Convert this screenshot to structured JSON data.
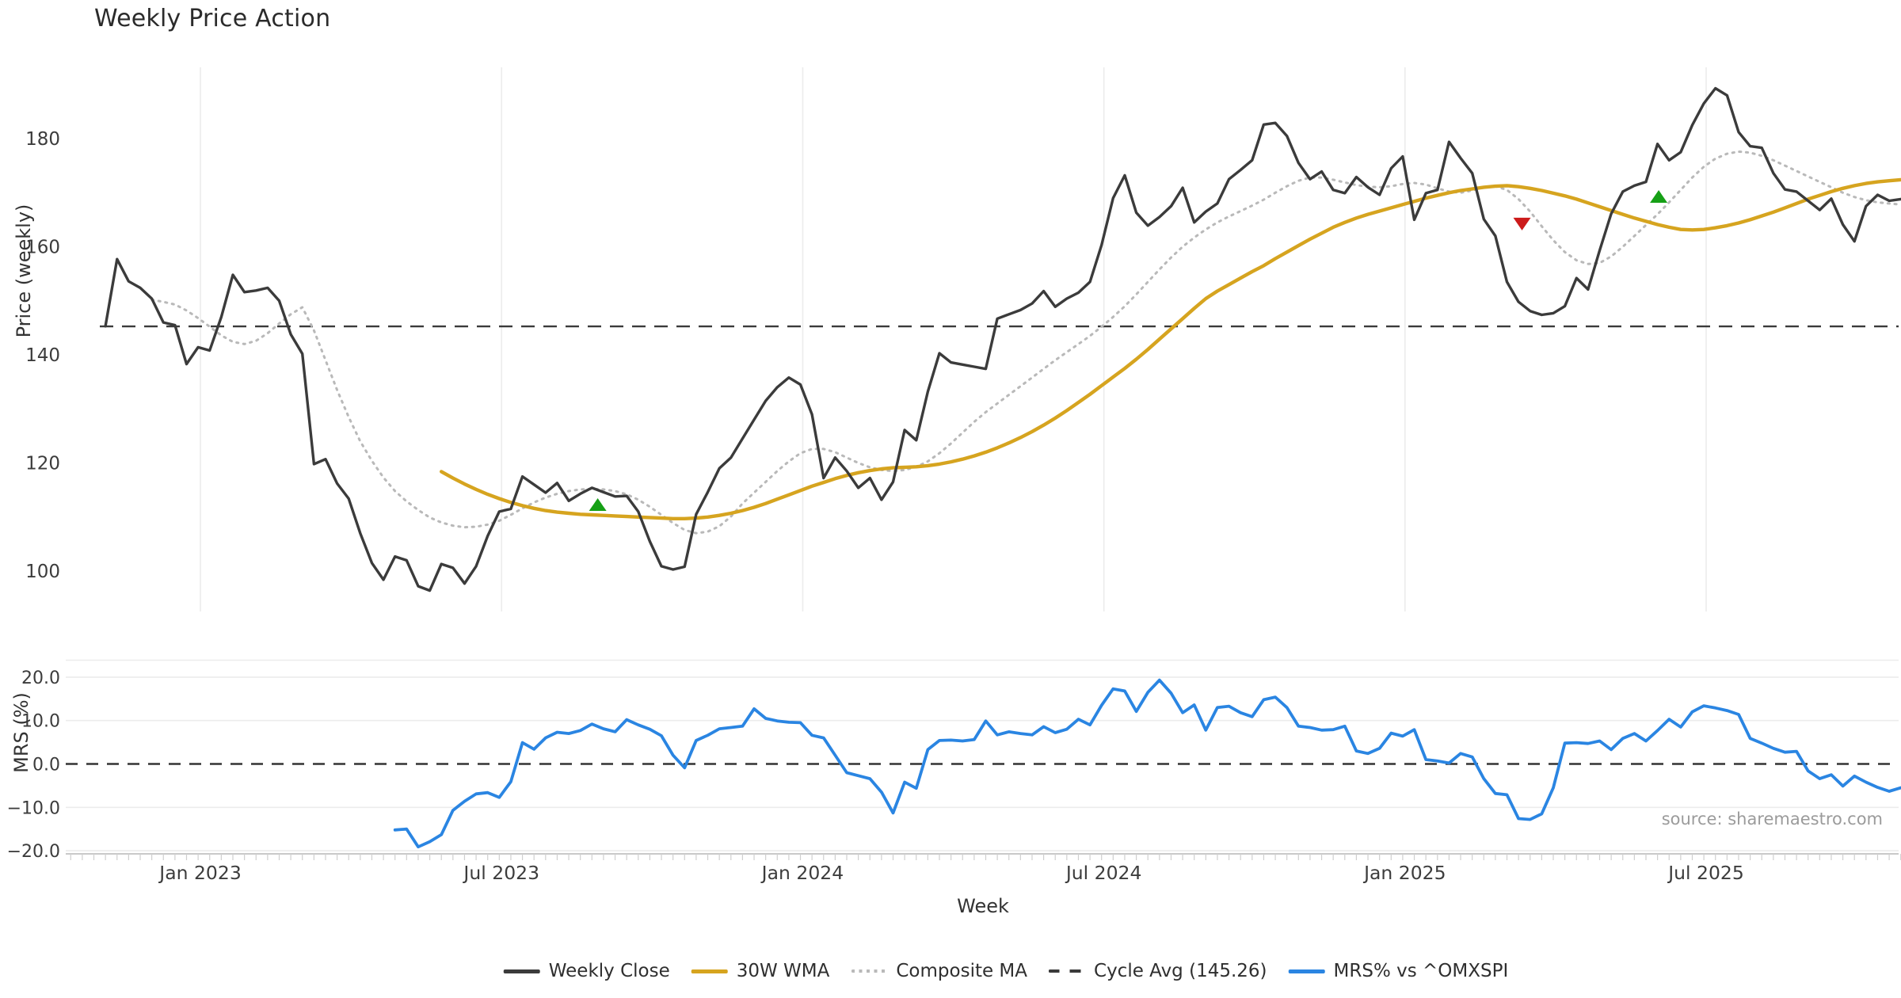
{
  "title": "Weekly Price Action",
  "source_note": "source: sharemaestro.com",
  "colors": {
    "close": "#3b3b3b",
    "wma": "#d6a41f",
    "composite": "#b9b9b9",
    "cycle_avg": "#3a3a3a",
    "mrs": "#2a85e2",
    "buy_marker": "#16a016",
    "sell_marker": "#cc1b1b",
    "gridline": "#ececec",
    "spine": "#c9c9c9",
    "tick_text": "#3c3c3c"
  },
  "legend": {
    "items": [
      {
        "label": "Weekly Close",
        "style": "solid",
        "color": "#3b3b3b"
      },
      {
        "label": "30W WMA",
        "style": "solid",
        "color": "#d6a41f"
      },
      {
        "label": "Composite MA",
        "style": "dotted",
        "color": "#b9b9b9"
      },
      {
        "label": "Cycle Avg (145.26)",
        "style": "dashed",
        "color": "#3a3a3a"
      },
      {
        "label": "MRS% vs ^OMXSPI",
        "style": "solid",
        "color": "#2a85e2"
      }
    ]
  },
  "chart_data": [
    {
      "type": "line",
      "title": "Weekly Price Action",
      "ylabel": "Price (weekly)",
      "x_unit": "week_index",
      "x_range": [
        0,
        155
      ],
      "x_tick_labels": [
        "Jan 2023",
        "Jul 2023",
        "Jan 2024",
        "Jul 2024",
        "Jan 2025",
        "Jul 2025"
      ],
      "x_tick_weeks": [
        8.2,
        34.2,
        60.2,
        86.2,
        112.2,
        138.2
      ],
      "ytick_labels": [
        "100",
        "120",
        "140",
        "160",
        "180"
      ],
      "yticks": [
        100,
        120,
        140,
        160,
        180
      ],
      "ylim": [
        86.5,
        193.5
      ],
      "grid": "vertical-only",
      "cycle_avg": 145.26,
      "series": [
        {
          "name": "Weekly Close",
          "color": "#3b3b3b",
          "values": [
            145.3,
            157.7,
            153.6,
            152.4,
            150.4,
            146.0,
            145.5,
            138.3,
            141.4,
            140.8,
            147.0,
            154.8,
            151.6,
            151.9,
            152.4,
            150.0,
            143.8,
            140.2,
            119.8,
            120.7,
            116.2,
            113.4,
            107.0,
            101.5,
            98.4,
            102.7,
            102.0,
            97.2,
            96.4,
            101.3,
            100.6,
            97.7,
            100.9,
            106.5,
            111.0,
            111.5,
            117.5,
            116.0,
            114.5,
            116.3,
            113.0,
            114.3,
            115.4,
            114.6,
            113.8,
            113.9,
            111.0,
            105.5,
            100.9,
            100.3,
            100.8,
            110.5,
            114.6,
            119.0,
            121.0,
            124.5,
            128.0,
            131.5,
            134.0,
            135.8,
            134.5,
            129.0,
            117.2,
            121.0,
            118.5,
            115.4,
            117.2,
            113.2,
            116.5,
            126.1,
            124.2,
            133.2,
            140.3,
            138.6,
            138.2,
            137.8,
            137.4,
            146.7,
            147.5,
            148.3,
            149.5,
            151.8,
            148.9,
            150.4,
            151.5,
            153.5,
            160.3,
            169.0,
            173.2,
            166.3,
            163.9,
            165.5,
            167.5,
            170.9,
            164.5,
            166.5,
            168.0,
            172.5,
            174.2,
            176.0,
            182.6,
            182.9,
            180.5,
            175.5,
            172.5,
            173.9,
            170.5,
            169.9,
            172.9,
            171.0,
            169.6,
            174.5,
            176.7,
            165.0,
            169.9,
            170.5,
            179.4,
            176.4,
            173.6,
            165.1,
            162.0,
            153.5,
            149.8,
            148.1,
            147.4,
            147.7,
            149.0,
            154.2,
            152.1,
            159.3,
            166.1,
            170.2,
            171.3,
            172.0,
            179.0,
            176.0,
            177.5,
            182.5,
            186.5,
            189.3,
            188.0,
            181.2,
            178.6,
            178.3,
            173.6,
            170.6,
            170.2,
            168.5,
            166.8,
            168.9,
            164.1,
            161.0,
            167.5,
            169.6,
            168.5,
            168.8
          ]
        },
        {
          "name": "30W WMA",
          "color": "#d6a41f",
          "values": [
            null,
            null,
            null,
            null,
            null,
            null,
            null,
            null,
            null,
            null,
            null,
            null,
            null,
            null,
            null,
            null,
            null,
            null,
            null,
            null,
            null,
            null,
            null,
            null,
            null,
            null,
            null,
            null,
            null,
            118.4,
            117.2,
            116.1,
            115.1,
            114.2,
            113.4,
            112.7,
            112.1,
            111.6,
            111.2,
            110.9,
            110.7,
            110.5,
            110.4,
            110.3,
            110.2,
            110.1,
            110.0,
            109.9,
            109.8,
            109.7,
            109.7,
            109.8,
            110.0,
            110.3,
            110.7,
            111.2,
            111.8,
            112.5,
            113.3,
            114.1,
            114.9,
            115.7,
            116.4,
            117.1,
            117.7,
            118.2,
            118.6,
            118.9,
            119.1,
            119.2,
            119.3,
            119.5,
            119.8,
            120.2,
            120.7,
            121.3,
            122.0,
            122.8,
            123.7,
            124.7,
            125.8,
            127.0,
            128.3,
            129.7,
            131.2,
            132.7,
            134.3,
            135.9,
            137.5,
            139.2,
            141.0,
            142.9,
            144.8,
            146.7,
            148.6,
            150.4,
            151.8,
            153.0,
            154.2,
            155.4,
            156.5,
            157.8,
            159.0,
            160.2,
            161.4,
            162.5,
            163.6,
            164.5,
            165.3,
            166.0,
            166.6,
            167.2,
            167.8,
            168.4,
            169.0,
            169.5,
            170.0,
            170.4,
            170.7,
            171.0,
            171.2,
            171.3,
            171.1,
            170.8,
            170.4,
            169.9,
            169.4,
            168.8,
            168.1,
            167.4,
            166.7,
            166.0,
            165.3,
            164.7,
            164.1,
            163.6,
            163.2,
            163.1,
            163.2,
            163.5,
            163.9,
            164.4,
            165.0,
            165.7,
            166.4,
            167.2,
            168.0,
            168.8,
            169.5,
            170.2,
            170.8,
            171.3,
            171.7,
            172.0,
            172.2,
            172.4
          ]
        },
        {
          "name": "Composite MA",
          "color": "#b9b9b9",
          "values": [
            null,
            null,
            null,
            null,
            150.2,
            149.8,
            149.3,
            148.2,
            146.8,
            145.2,
            143.6,
            142.4,
            142.0,
            142.6,
            144.0,
            145.8,
            147.5,
            148.8,
            144.5,
            139.0,
            133.5,
            128.5,
            124.0,
            120.4,
            117.3,
            114.8,
            112.9,
            111.3,
            109.9,
            109.0,
            108.4,
            108.1,
            108.2,
            108.6,
            109.3,
            110.4,
            111.6,
            112.7,
            113.6,
            114.3,
            114.8,
            115.1,
            115.2,
            115.1,
            114.8,
            114.2,
            113.2,
            111.9,
            110.4,
            108.9,
            107.6,
            107.0,
            107.3,
            108.3,
            110.1,
            112.5,
            114.5,
            116.5,
            118.5,
            120.3,
            121.8,
            122.6,
            122.6,
            122.0,
            121.0,
            120.0,
            119.2,
            118.7,
            118.5,
            118.7,
            119.3,
            120.3,
            121.8,
            123.6,
            125.6,
            127.6,
            129.4,
            131.0,
            132.6,
            134.2,
            135.8,
            137.4,
            139.0,
            140.5,
            142.0,
            143.5,
            145.2,
            147.0,
            149.0,
            151.2,
            153.5,
            155.8,
            158.0,
            160.0,
            161.7,
            163.2,
            164.5,
            165.6,
            166.6,
            167.6,
            168.7,
            170.0,
            171.2,
            172.2,
            172.8,
            172.8,
            172.4,
            171.9,
            171.4,
            171.1,
            171.0,
            171.2,
            171.6,
            171.8,
            171.5,
            170.8,
            170.2,
            170.0,
            170.4,
            171.0,
            171.2,
            170.5,
            168.8,
            166.5,
            163.8,
            161.2,
            159.0,
            157.5,
            156.8,
            157.0,
            158.2,
            160.0,
            162.0,
            164.0,
            166.0,
            168.2,
            170.5,
            172.8,
            174.8,
            176.3,
            177.2,
            177.6,
            177.4,
            176.8,
            176.0,
            175.0,
            174.0,
            173.0,
            172.0,
            171.0,
            170.0,
            169.2,
            168.6,
            168.2,
            168.0,
            167.8
          ]
        }
      ],
      "signals": {
        "buy": [
          {
            "week": 42.5,
            "price": 112.3
          },
          {
            "week": 134.1,
            "price": 169.3
          }
        ],
        "sell": [
          {
            "week": 122.3,
            "price": 164.2
          }
        ],
        "buy_color": "#16a016",
        "sell_color": "#cc1b1b"
      }
    },
    {
      "type": "line",
      "ylabel": "MRS (%)",
      "xlabel": "Week",
      "x_unit": "week_index",
      "x_range": [
        0,
        155
      ],
      "ytick_labels": [
        "20.0",
        "10.0",
        "0.0",
        "−10.0",
        "−20.0"
      ],
      "yticks": [
        20,
        10,
        0,
        -10,
        -20
      ],
      "ylim": [
        -20.7,
        23.9
      ],
      "grid": "horizontal-only",
      "zero_line": 0,
      "series": [
        {
          "name": "MRS% vs ^OMXSPI",
          "color": "#2a85e2",
          "values": [
            null,
            null,
            null,
            null,
            null,
            null,
            null,
            null,
            null,
            null,
            null,
            null,
            null,
            null,
            null,
            null,
            null,
            null,
            null,
            null,
            null,
            null,
            null,
            null,
            null,
            -15.2,
            -15.0,
            -19.1,
            -17.9,
            -16.3,
            -10.7,
            -8.6,
            -6.9,
            -6.6,
            -7.7,
            -4.1,
            4.9,
            3.4,
            6.0,
            7.3,
            7.0,
            7.7,
            9.2,
            8.1,
            7.4,
            10.2,
            9.0,
            8.0,
            6.5,
            2.0,
            -0.9,
            5.4,
            6.6,
            8.1,
            8.4,
            8.7,
            12.7,
            10.5,
            9.9,
            9.6,
            9.5,
            6.6,
            6.0,
            2.0,
            -2.0,
            -2.7,
            -3.4,
            -6.5,
            -11.3,
            -4.2,
            -5.6,
            3.3,
            5.4,
            5.5,
            5.3,
            5.6,
            9.9,
            6.7,
            7.4,
            7.0,
            6.7,
            8.6,
            7.2,
            8.0,
            10.3,
            9.0,
            13.5,
            17.3,
            16.8,
            12.1,
            16.5,
            19.3,
            16.3,
            11.8,
            13.6,
            7.8,
            13.0,
            13.3,
            11.8,
            10.9,
            14.8,
            15.4,
            13.0,
            8.7,
            8.4,
            7.8,
            7.9,
            8.7,
            3.0,
            2.4,
            3.6,
            7.1,
            6.4,
            7.9,
            1.0,
            0.7,
            0.2,
            2.4,
            1.6,
            -3.4,
            -6.8,
            -7.1,
            -12.6,
            -12.8,
            -11.5,
            -5.5,
            4.8,
            4.9,
            4.7,
            5.3,
            3.3,
            5.9,
            7.0,
            5.3,
            7.7,
            10.3,
            8.5,
            12.0,
            13.4,
            12.9,
            12.3,
            11.4,
            5.9,
            4.8,
            3.6,
            2.7,
            2.9,
            -1.6,
            -3.4,
            -2.5,
            -5.1,
            -2.8,
            -4.2,
            -5.4,
            -6.3,
            -5.5
          ]
        }
      ]
    }
  ]
}
